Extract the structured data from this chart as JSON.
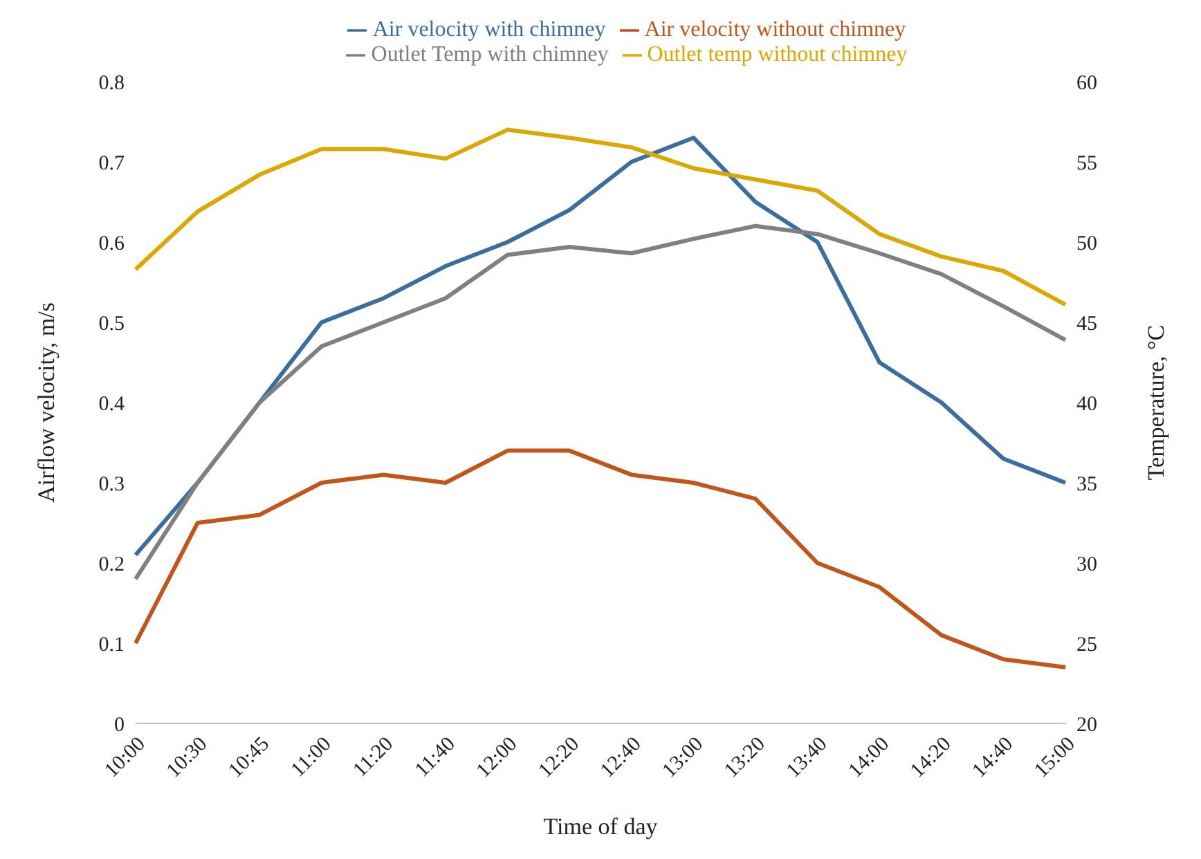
{
  "chart_data": {
    "type": "line",
    "xlabel": "Time of day",
    "ylabel": "Airflow velocity, m/s",
    "y2label": "Temperature, °C",
    "categories": [
      "10:00",
      "10:30",
      "10:45",
      "11:00",
      "11:20",
      "11:40",
      "12:00",
      "12:20",
      "12:40",
      "13:00",
      "13:20",
      "13:40",
      "14:00",
      "14:20",
      "14:40",
      "15:00"
    ],
    "series": [
      {
        "name": "Air velocity with chimney",
        "color": "#3b6e9e",
        "values": [
          0.21,
          0.3,
          0.4,
          0.5,
          0.53,
          0.57,
          0.6,
          0.64,
          0.7,
          0.73,
          0.65,
          0.6,
          0.45,
          0.4,
          0.33,
          0.3
        ]
      },
      {
        "name": "Air velocity without chimney",
        "color": "#c0561c",
        "values": [
          0.1,
          0.25,
          0.26,
          0.3,
          0.31,
          0.3,
          0.34,
          0.34,
          0.31,
          0.3,
          0.28,
          0.2,
          0.17,
          0.11,
          0.08,
          0.07
        ]
      },
      {
        "name": "Outlet Temp with chimney",
        "color": "#808080",
        "axis": "y2",
        "values": [
          29,
          35,
          40,
          43.5,
          45,
          46.5,
          49.2,
          49.7,
          49.3,
          50.2,
          51,
          50.5,
          49.3,
          48,
          46,
          43.9
        ]
      },
      {
        "name": "Outlet temp without chimney",
        "color": "#dba800",
        "axis": "y2",
        "values": [
          48.3,
          51.9,
          54.2,
          55.8,
          55.8,
          55.2,
          57,
          56.5,
          55.9,
          54.6,
          53.9,
          53.2,
          50.5,
          49.1,
          48.2,
          46.1
        ]
      }
    ],
    "ylim": [
      0,
      0.8
    ],
    "yticks": [
      0,
      0.1,
      0.2,
      0.3,
      0.4,
      0.5,
      0.6,
      0.7,
      0.8
    ],
    "y2lim": [
      20,
      60
    ],
    "y2ticks": [
      20,
      25,
      30,
      35,
      40,
      45,
      50,
      55,
      60
    ],
    "grid": false,
    "legend": "top",
    "marker": "none",
    "line_style": "solid"
  }
}
